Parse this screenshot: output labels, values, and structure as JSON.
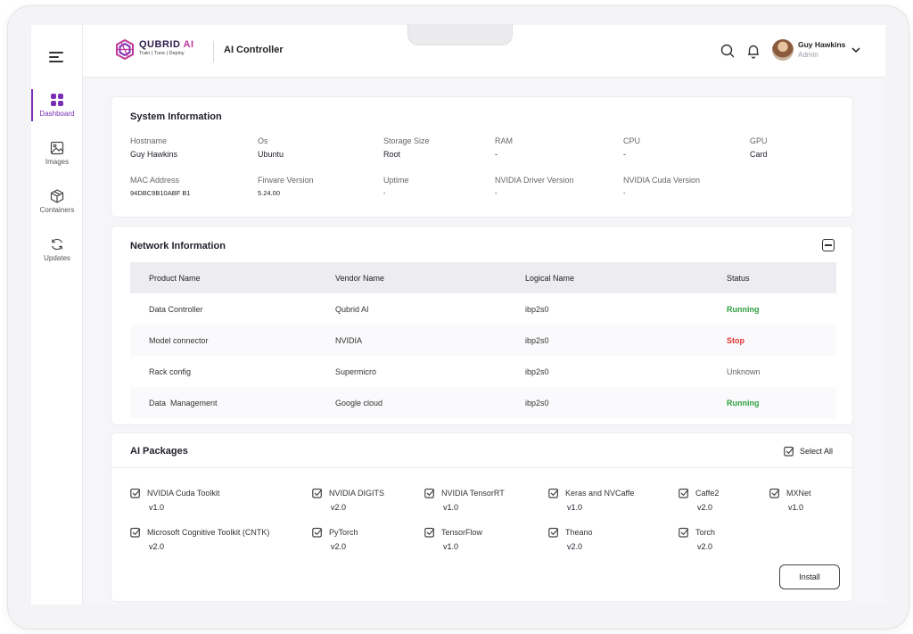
{
  "brand": {
    "name": "QUBRID",
    "ai": "AI",
    "tagline": "Train | Tune | Deploy"
  },
  "header": {
    "title": "AI Controller"
  },
  "user": {
    "name": "Guy Hawkins",
    "role": "Admin"
  },
  "sidebar": {
    "items": [
      {
        "label": "Dashboard",
        "icon": "dashboard-icon",
        "active": true
      },
      {
        "label": "Images",
        "icon": "image-icon"
      },
      {
        "label": "Containers",
        "icon": "box-icon"
      },
      {
        "label": "Updates",
        "icon": "refresh-icon"
      }
    ]
  },
  "system": {
    "title": "System Information",
    "fields": [
      {
        "key": "Hostname",
        "value": "Guy Hawkins"
      },
      {
        "key": "Os",
        "value": "Ubuntu"
      },
      {
        "key": "Storage Size",
        "value": "Root"
      },
      {
        "key": "RAM",
        "value": "-"
      },
      {
        "key": "CPU",
        "value": "-"
      },
      {
        "key": "GPU",
        "value": "Card"
      },
      {
        "key": "MAC Address",
        "value": "94DBC9B10ABF B1"
      },
      {
        "key": "Firware Version",
        "value": "5.24.00"
      },
      {
        "key": "Uptime",
        "value": "-"
      },
      {
        "key": "NVIDIA Driver Version",
        "value": "-"
      },
      {
        "key": "NVIDIA Cuda Version",
        "value": "-"
      }
    ]
  },
  "network": {
    "title": "Network Information",
    "columns": [
      "Product Name",
      "Vendor Name",
      "Logical Name",
      "Status"
    ],
    "rows": [
      {
        "product": "Data Controller",
        "vendor": "Qubrid AI",
        "logical": "ibp2s0",
        "status": "Running"
      },
      {
        "product": "Model connector",
        "vendor": "NVIDIA",
        "logical": "ibp2s0",
        "status": "Stop"
      },
      {
        "product": "Rack config",
        "vendor": "Supermicro",
        "logical": "ibp2s0",
        "status": "Unknown"
      },
      {
        "product": "Data  Management",
        "vendor": "Google cloud",
        "logical": "ibp2s0",
        "status": "Running"
      }
    ]
  },
  "packages": {
    "title": "AI Packages",
    "select_all": "Select All",
    "install": "Install",
    "items": [
      {
        "name": "NVIDIA Cuda Toolkit",
        "version": "v1.0"
      },
      {
        "name": "NVIDIA DIGITS",
        "version": "v2.0"
      },
      {
        "name": "NVIDIA TensorRT",
        "version": "v1.0"
      },
      {
        "name": "Keras and NVCaffe",
        "version": "v1.0"
      },
      {
        "name": "Caffe2",
        "version": "v2.0"
      },
      {
        "name": "MXNet",
        "version": "v1.0"
      },
      {
        "name": "Microsoft Cognitive Toolkit (CNTK)",
        "version": "v2.0"
      },
      {
        "name": "PyTorch",
        "version": "v2.0"
      },
      {
        "name": "TensorFlow",
        "version": "v1.0"
      },
      {
        "name": "Theano",
        "version": "v2.0"
      },
      {
        "name": "Torch",
        "version": "v2.0"
      }
    ]
  },
  "colors": {
    "accent": "#7a2fb5",
    "running": "#2e9e3e",
    "stop": "#e0322f"
  }
}
